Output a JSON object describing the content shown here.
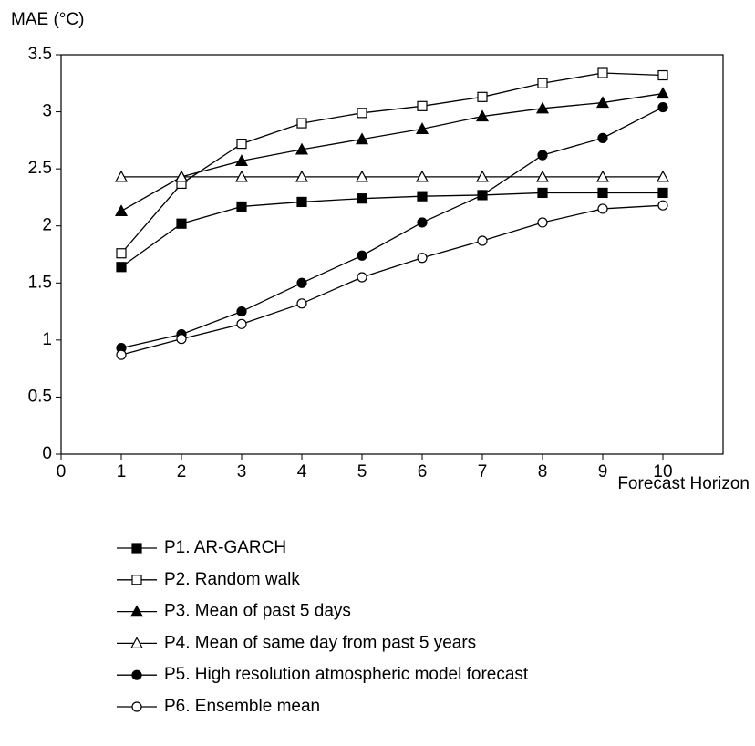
{
  "chart_data": {
    "type": "line",
    "y_label": "MAE (°C)",
    "x_label": "Forecast Horizon",
    "x": [
      1,
      2,
      3,
      4,
      5,
      6,
      7,
      8,
      9,
      10
    ],
    "xlim": [
      0,
      11
    ],
    "xticks": [
      0,
      1,
      2,
      3,
      4,
      5,
      6,
      7,
      8,
      9,
      10
    ],
    "ylim": [
      0,
      3.5
    ],
    "yticks": [
      0,
      0.5,
      1,
      1.5,
      2,
      2.5,
      3,
      3.5
    ],
    "grid": false,
    "legend": "bottom",
    "series": [
      {
        "name": "P1. AR-GARCH",
        "color": "#000000",
        "marker": "square",
        "filled": true,
        "values": [
          1.64,
          2.02,
          2.17,
          2.21,
          2.24,
          2.26,
          2.27,
          2.29,
          2.29,
          2.29
        ]
      },
      {
        "name": "P2. Random walk",
        "color": "#000000",
        "marker": "square",
        "filled": false,
        "values": [
          1.76,
          2.37,
          2.72,
          2.9,
          2.99,
          3.05,
          3.13,
          3.25,
          3.34,
          3.32
        ]
      },
      {
        "name": "P3. Mean of past 5 days",
        "color": "#000000",
        "marker": "triangle",
        "filled": true,
        "values": [
          2.13,
          2.43,
          2.57,
          2.67,
          2.76,
          2.85,
          2.96,
          3.03,
          3.08,
          3.16
        ]
      },
      {
        "name": "P4. Mean of same day from past 5 years",
        "color": "#000000",
        "marker": "triangle",
        "filled": false,
        "values": [
          2.43,
          2.43,
          2.43,
          2.43,
          2.43,
          2.43,
          2.43,
          2.43,
          2.43,
          2.43
        ]
      },
      {
        "name": "P5. High resolution atmospheric model forecast",
        "color": "#000000",
        "marker": "circle",
        "filled": true,
        "values": [
          0.93,
          1.05,
          1.25,
          1.5,
          1.74,
          2.03,
          2.27,
          2.62,
          2.77,
          3.04
        ]
      },
      {
        "name": "P6. Ensemble mean",
        "color": "#000000",
        "marker": "circle",
        "filled": false,
        "values": [
          0.87,
          1.01,
          1.14,
          1.32,
          1.55,
          1.72,
          1.87,
          2.03,
          2.15,
          2.18
        ]
      }
    ]
  }
}
